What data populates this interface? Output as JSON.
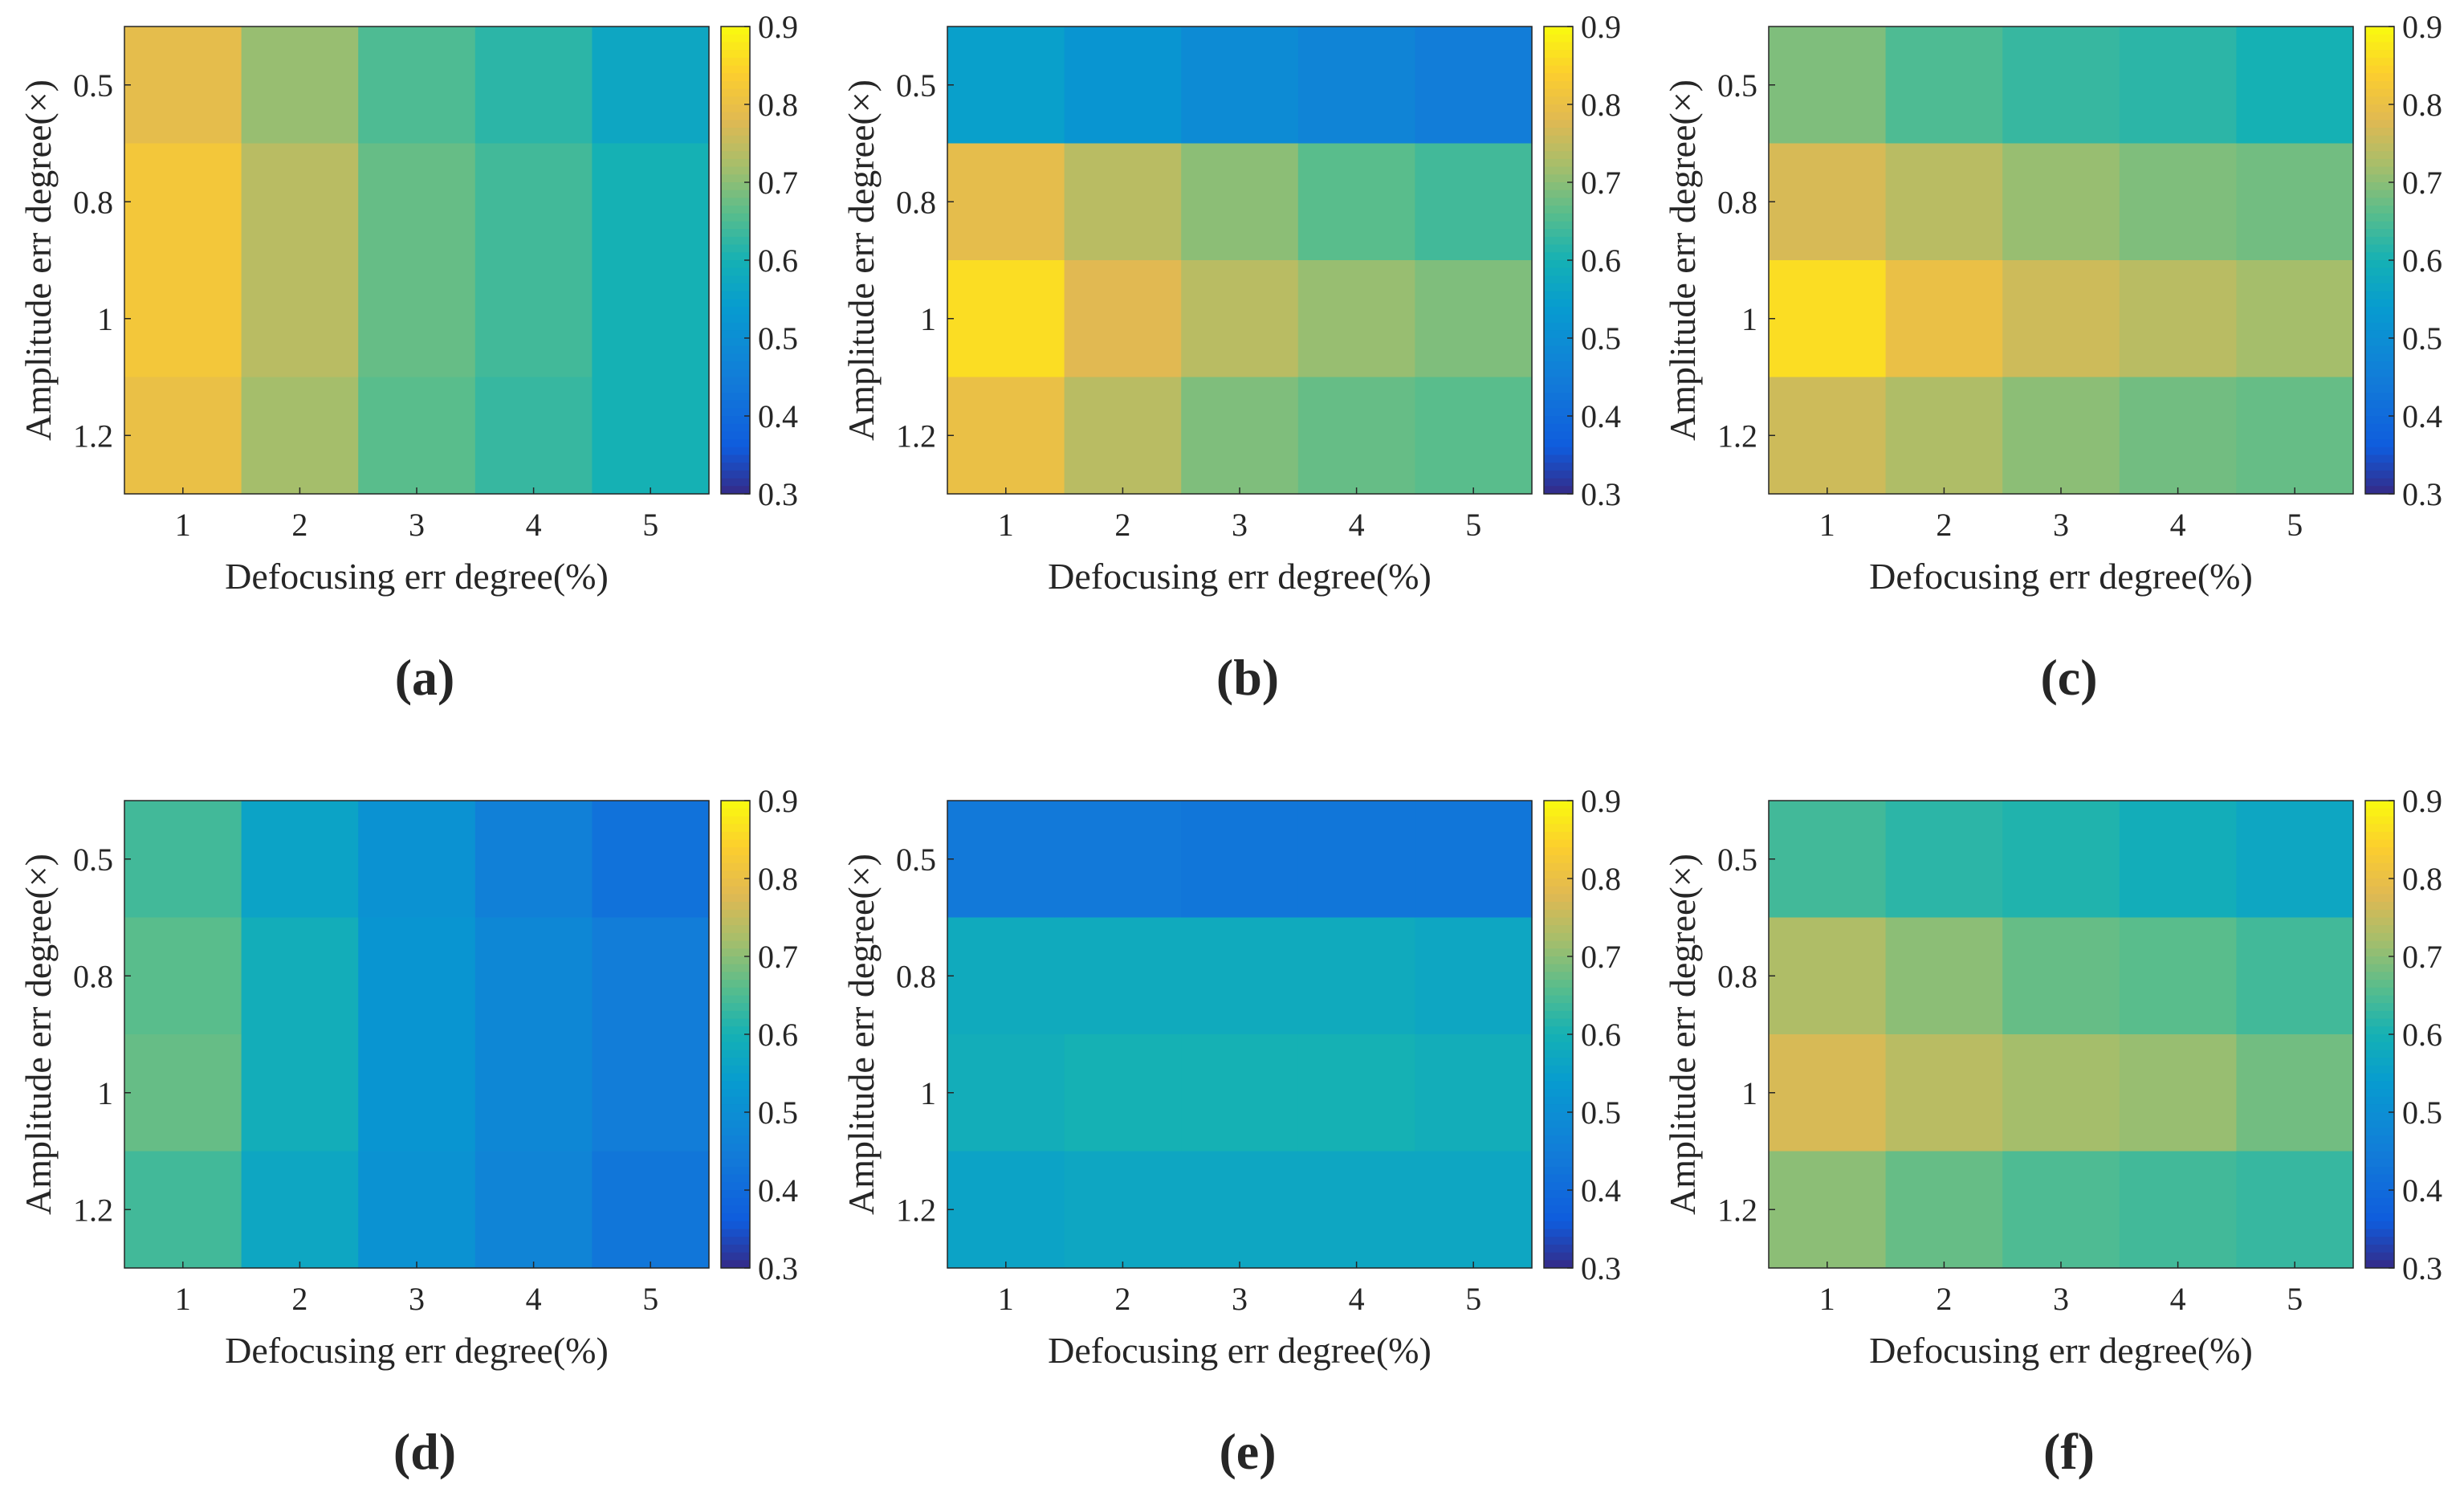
{
  "figure": {
    "panel_count": 6
  },
  "chart_data": [
    {
      "type": "heatmap",
      "panel_label": "(a)",
      "xlabel": "Defocusing err degree(%)",
      "ylabel": "Amplitude err degree(×)",
      "x_ticks": [
        "1",
        "2",
        "3",
        "4",
        "5"
      ],
      "y_ticks": [
        "0.5",
        "0.8",
        "1",
        "1.2"
      ],
      "colorbar": {
        "min": 0.3,
        "max": 0.9,
        "ticks": [
          "0.9",
          "0.8",
          "0.7",
          "0.6",
          "0.5",
          "0.4",
          "0.3"
        ]
      },
      "values": [
        [
          0.79,
          0.71,
          0.65,
          0.62,
          0.57
        ],
        [
          0.82,
          0.74,
          0.67,
          0.64,
          0.6
        ],
        [
          0.82,
          0.74,
          0.67,
          0.64,
          0.6
        ],
        [
          0.8,
          0.72,
          0.66,
          0.63,
          0.6
        ]
      ]
    },
    {
      "type": "heatmap",
      "panel_label": "(b)",
      "xlabel": "Defocusing err degree(%)",
      "ylabel": "Amplitude err degree(×)",
      "x_ticks": [
        "1",
        "2",
        "3",
        "4",
        "5"
      ],
      "y_ticks": [
        "0.5",
        "0.8",
        "1",
        "1.2"
      ],
      "colorbar": {
        "min": 0.3,
        "max": 0.9,
        "ticks": [
          "0.9",
          "0.8",
          "0.7",
          "0.6",
          "0.5",
          "0.4",
          "0.3"
        ]
      },
      "values": [
        [
          0.55,
          0.52,
          0.49,
          0.47,
          0.45
        ],
        [
          0.79,
          0.74,
          0.7,
          0.66,
          0.64
        ],
        [
          0.86,
          0.78,
          0.74,
          0.71,
          0.69
        ],
        [
          0.8,
          0.74,
          0.69,
          0.67,
          0.66
        ]
      ]
    },
    {
      "type": "heatmap",
      "panel_label": "(c)",
      "xlabel": "Defocusing err degree(%)",
      "ylabel": "Amplitude err degree(×)",
      "x_ticks": [
        "1",
        "2",
        "3",
        "4",
        "5"
      ],
      "y_ticks": [
        "0.5",
        "0.8",
        "1",
        "1.2"
      ],
      "colorbar": {
        "min": 0.3,
        "max": 0.9,
        "ticks": [
          "0.9",
          "0.8",
          "0.7",
          "0.6",
          "0.5",
          "0.4",
          "0.3"
        ]
      },
      "values": [
        [
          0.69,
          0.65,
          0.63,
          0.62,
          0.6
        ],
        [
          0.77,
          0.74,
          0.71,
          0.69,
          0.68
        ],
        [
          0.86,
          0.8,
          0.76,
          0.74,
          0.72
        ],
        [
          0.76,
          0.73,
          0.7,
          0.68,
          0.67
        ]
      ]
    },
    {
      "type": "heatmap",
      "panel_label": "(d)",
      "xlabel": "Defocusing err degree(%)",
      "ylabel": "Amplitude err degree(×)",
      "x_ticks": [
        "1",
        "2",
        "3",
        "4",
        "5"
      ],
      "y_ticks": [
        "0.5",
        "0.8",
        "1",
        "1.2"
      ],
      "colorbar": {
        "min": 0.3,
        "max": 0.9,
        "ticks": [
          "0.9",
          "0.8",
          "0.7",
          "0.6",
          "0.5",
          "0.4",
          "0.3"
        ]
      },
      "values": [
        [
          0.64,
          0.56,
          0.51,
          0.46,
          0.42
        ],
        [
          0.66,
          0.59,
          0.52,
          0.48,
          0.45
        ],
        [
          0.67,
          0.59,
          0.52,
          0.48,
          0.45
        ],
        [
          0.64,
          0.57,
          0.51,
          0.47,
          0.43
        ]
      ]
    },
    {
      "type": "heatmap",
      "panel_label": "(e)",
      "xlabel": "Defocusing err degree(%)",
      "ylabel": "Amplitude err degree(×)",
      "x_ticks": [
        "1",
        "2",
        "3",
        "4",
        "5"
      ],
      "y_ticks": [
        "0.5",
        "0.8",
        "1",
        "1.2"
      ],
      "colorbar": {
        "min": 0.3,
        "max": 0.9,
        "ticks": [
          "0.9",
          "0.8",
          "0.7",
          "0.6",
          "0.5",
          "0.4",
          "0.3"
        ]
      },
      "values": [
        [
          0.44,
          0.44,
          0.43,
          0.43,
          0.43
        ],
        [
          0.58,
          0.58,
          0.58,
          0.58,
          0.57
        ],
        [
          0.59,
          0.6,
          0.6,
          0.6,
          0.59
        ],
        [
          0.56,
          0.57,
          0.57,
          0.57,
          0.57
        ]
      ]
    },
    {
      "type": "heatmap",
      "panel_label": "(f)",
      "xlabel": "Defocusing err degree(%)",
      "ylabel": "Amplitude err degree(×)",
      "x_ticks": [
        "1",
        "2",
        "3",
        "4",
        "5"
      ],
      "y_ticks": [
        "0.5",
        "0.8",
        "1",
        "1.2"
      ],
      "colorbar": {
        "min": 0.3,
        "max": 0.9,
        "ticks": [
          "0.9",
          "0.8",
          "0.7",
          "0.6",
          "0.5",
          "0.4",
          "0.3"
        ]
      },
      "values": [
        [
          0.64,
          0.62,
          0.61,
          0.59,
          0.57
        ],
        [
          0.73,
          0.7,
          0.67,
          0.66,
          0.64
        ],
        [
          0.77,
          0.74,
          0.72,
          0.71,
          0.68
        ],
        [
          0.7,
          0.67,
          0.65,
          0.64,
          0.63
        ]
      ]
    }
  ]
}
